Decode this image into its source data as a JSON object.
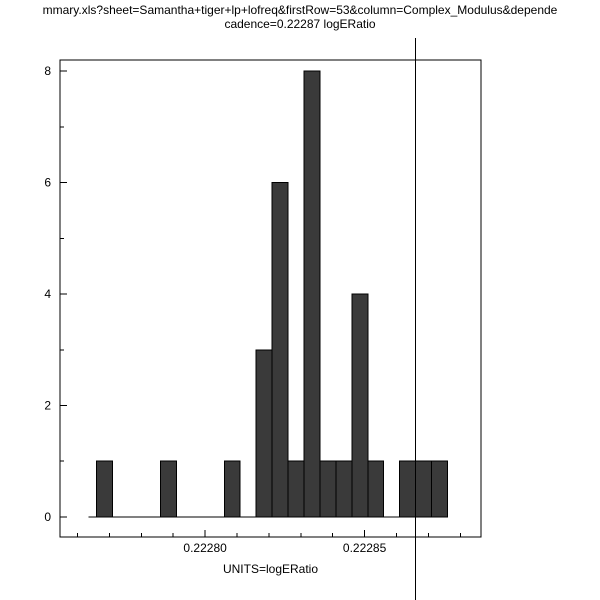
{
  "chart_data": {
    "type": "bar",
    "title_line1": "mmary.xls?sheet=Samantha+tiger+lp+lofreq&firstRow=53&column=Complex_Modulus&depende",
    "title_line2": "cadence=0.22287 logERatio",
    "xlabel": "UNITS=logERatio",
    "ylabel": "",
    "xlim": [
      0.2227545,
      0.2228865
    ],
    "ylim": [
      -0.36,
      8.2
    ],
    "x_major_ticks": [
      {
        "value": 0.2228,
        "label": "0.22280"
      },
      {
        "value": 0.22285,
        "label": "0.22285"
      }
    ],
    "x_minor_ticks": [
      0.22276,
      0.22277,
      0.22278,
      0.22279,
      0.22281,
      0.22282,
      0.22283,
      0.22284,
      0.22286,
      0.22287,
      0.22288
    ],
    "y_major_ticks": [
      {
        "value": 0,
        "label": "0"
      },
      {
        "value": 2,
        "label": "2"
      },
      {
        "value": 4,
        "label": "4"
      },
      {
        "value": 6,
        "label": "6"
      },
      {
        "value": 8,
        "label": "8"
      }
    ],
    "y_minor_ticks": [
      1,
      3,
      5,
      7
    ],
    "histogram": {
      "bin_start": 0.222766,
      "bin_width": 5e-06,
      "counts": [
        1,
        0,
        0,
        0,
        1,
        0,
        0,
        0,
        1,
        0,
        3,
        6,
        1,
        8,
        1,
        1,
        4,
        1,
        0,
        1,
        1,
        1
      ]
    },
    "baseline_extent": [
      0.2227635,
      0.222876
    ],
    "marker_line_x": 0.222866,
    "grid": false,
    "legend": null,
    "colors": {
      "bar_fill": "#3a3a3a",
      "bar_stroke": "#000000",
      "axis": "#000000",
      "marker": "#000000",
      "background": "#ffffff",
      "text": "#000000"
    }
  }
}
